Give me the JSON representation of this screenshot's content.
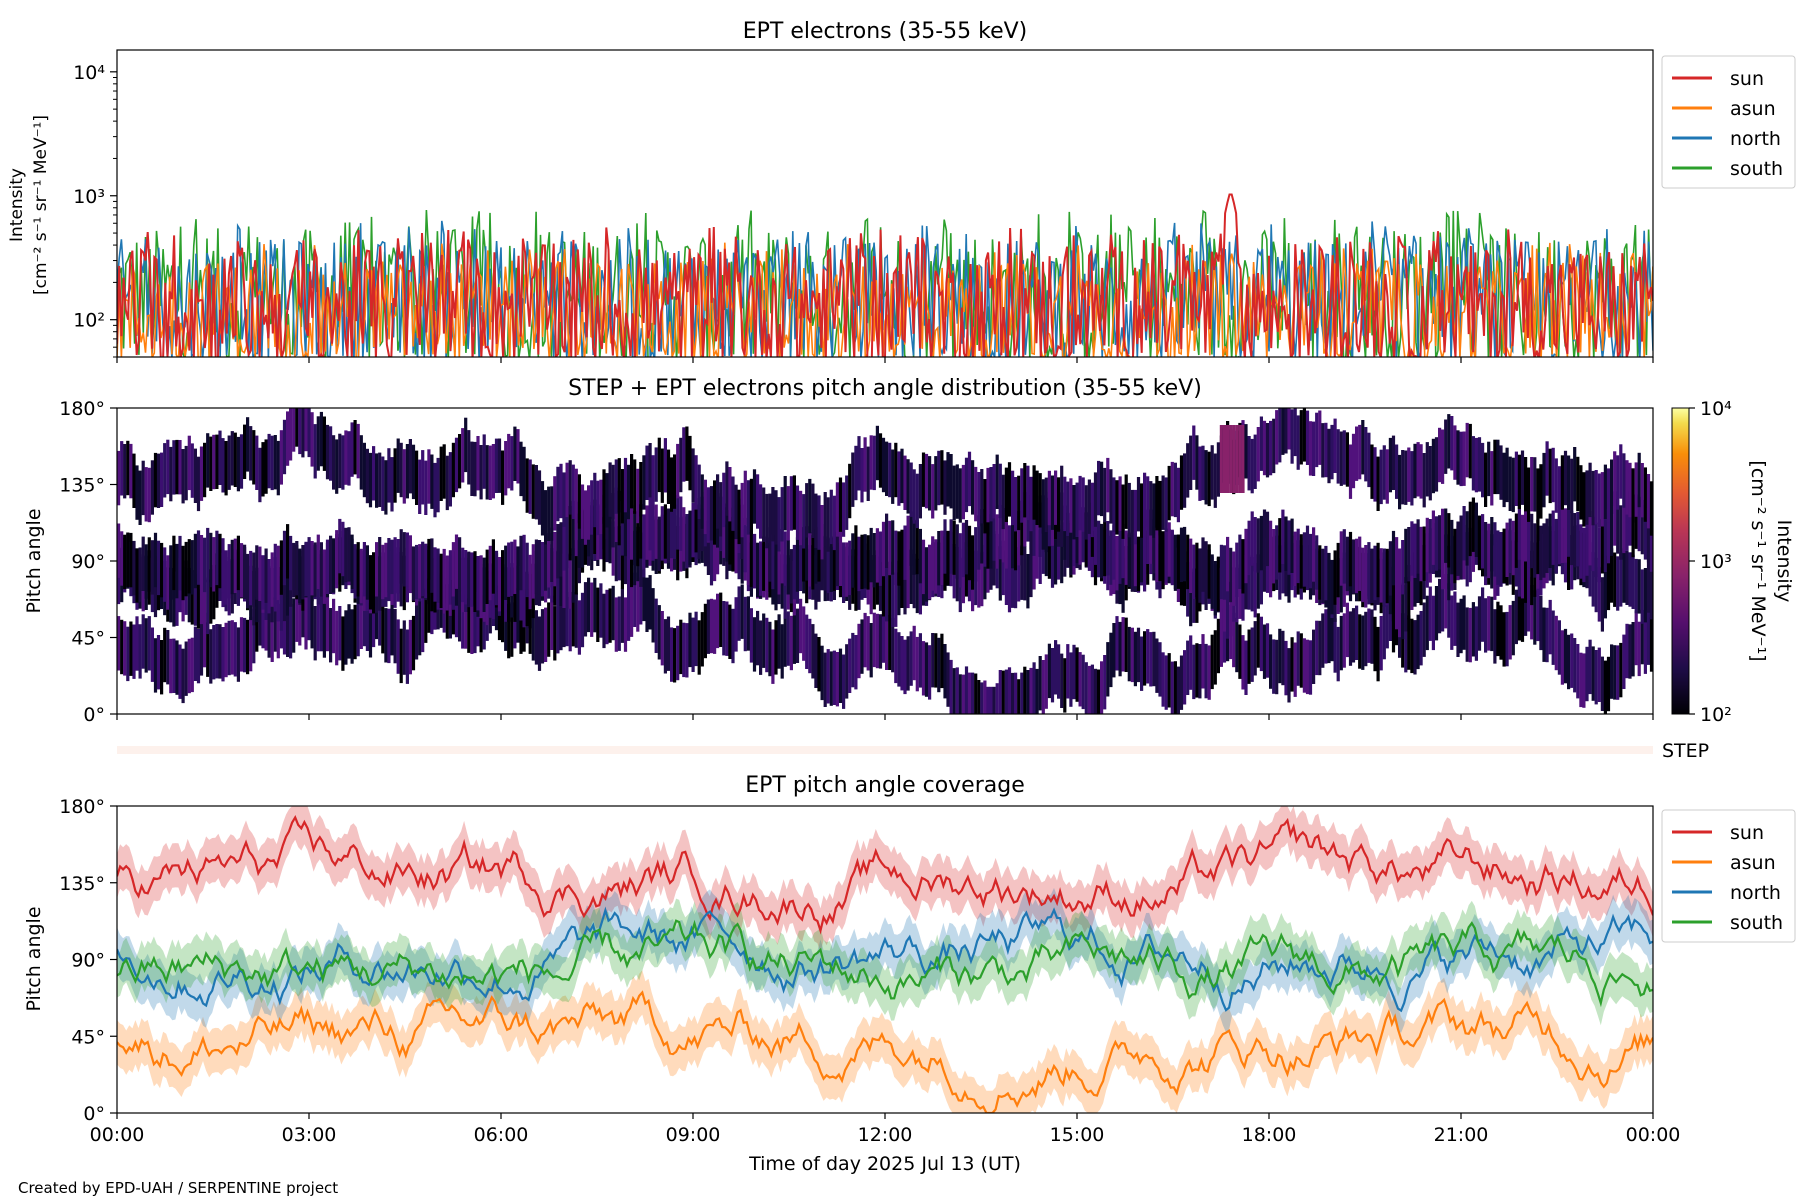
{
  "chart_data": [
    {
      "type": "line",
      "title": "EPT electrons (35-55 keV)",
      "ylabel_line1": "Intensity",
      "ylabel_line2": "[cm⁻² s⁻¹ sr⁻¹ MeV⁻¹]",
      "yscale": "log",
      "ylim": [
        50,
        15000
      ],
      "ytick_labels": [
        "10²",
        "10³",
        "10⁴"
      ],
      "legend_position": "right",
      "series": [
        {
          "name": "sun",
          "color": "#d62728",
          "typical_range": [
            60,
            400
          ],
          "peak": {
            "time_h": 17.4,
            "value": 1100
          }
        },
        {
          "name": "asun",
          "color": "#ff7f0e",
          "typical_range": [
            60,
            300
          ]
        },
        {
          "name": "north",
          "color": "#1f77b4",
          "typical_range": [
            60,
            450
          ]
        },
        {
          "name": "south",
          "color": "#2ca02c",
          "typical_range": [
            60,
            550
          ]
        }
      ]
    },
    {
      "type": "heatmap",
      "title": "STEP + EPT electrons pitch angle distribution (35-55 keV)",
      "ylabel": "Pitch angle",
      "ylim": [
        0,
        180
      ],
      "ytick_labels": [
        "0°",
        "45°",
        "90°",
        "135°",
        "180°"
      ],
      "colorbar": {
        "label_line1": "Intensity",
        "label_line2": "[cm⁻² s⁻¹ sr⁻¹ MeV⁻¹]",
        "scale": "log",
        "range": [
          100,
          10000
        ],
        "tick_labels": [
          "10²",
          "10³",
          "10⁴"
        ]
      },
      "step_label": "STEP"
    },
    {
      "type": "line",
      "title": "EPT pitch angle coverage",
      "ylabel": "Pitch angle",
      "ylim": [
        0,
        180
      ],
      "ytick_labels": [
        "0°",
        "45°",
        "90°",
        "135°",
        "180°"
      ],
      "legend_position": "right",
      "series": [
        {
          "name": "sun",
          "color": "#d62728",
          "start": 135,
          "typical_range": [
            100,
            175
          ]
        },
        {
          "name": "asun",
          "color": "#ff7f0e",
          "start": 47,
          "typical_range": [
            10,
            80
          ]
        },
        {
          "name": "north",
          "color": "#1f77b4",
          "start": 98,
          "typical_range": [
            40,
            150
          ]
        },
        {
          "name": "south",
          "color": "#2ca02c",
          "start": 85,
          "typical_range": [
            30,
            130
          ]
        }
      ]
    }
  ],
  "xaxis": {
    "range_hours": [
      0,
      24
    ],
    "tick_labels": [
      "00:00",
      "03:00",
      "06:00",
      "09:00",
      "12:00",
      "15:00",
      "18:00",
      "21:00",
      "00:00"
    ],
    "label": "Time of day 2025 Jul 13 (UT)"
  },
  "footer": "Created by EPD-UAH / SERPENTINE project"
}
